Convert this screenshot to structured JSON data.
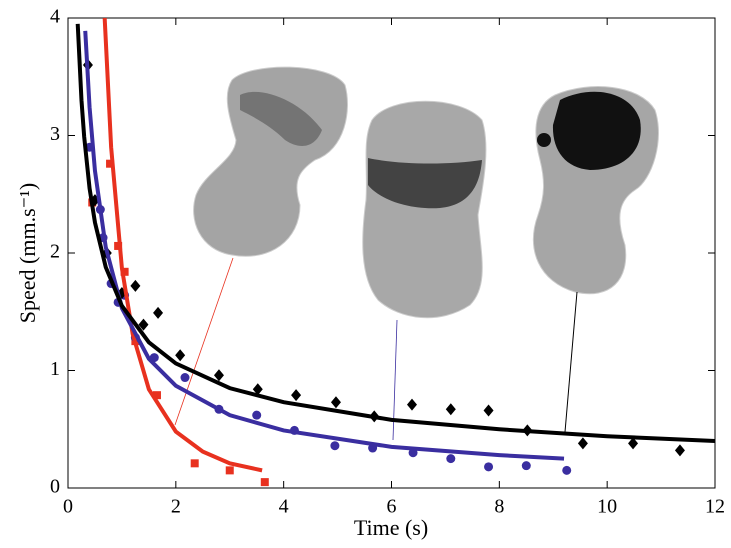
{
  "chart_data": {
    "type": "scatter",
    "xlabel": "Time (s)",
    "ylabel": "Speed (mm.s⁻¹)",
    "xlim": [
      0,
      12
    ],
    "ylim": [
      0,
      4
    ],
    "xticks": [
      0,
      2,
      4,
      6,
      8,
      10,
      12
    ],
    "yticks": [
      0,
      1,
      2,
      3,
      4
    ],
    "series": [
      {
        "type": "scatter",
        "marker": "square",
        "color": "#e8311f",
        "x": [
          0.45,
          0.78,
          0.93,
          1.05,
          1.25,
          1.65,
          2.35,
          3.0,
          3.65
        ],
        "values": [
          2.43,
          2.76,
          2.06,
          1.84,
          1.25,
          0.79,
          0.21,
          0.15,
          0.05
        ]
      },
      {
        "type": "scatter",
        "marker": "circle",
        "color": "#3a2ea0",
        "x": [
          0.4,
          0.6,
          0.65,
          0.8,
          0.93,
          1.05,
          1.25,
          1.6,
          2.17,
          2.8,
          3.5,
          4.2,
          4.95,
          5.65,
          6.4,
          7.1,
          7.8,
          8.5,
          9.25
        ],
        "values": [
          2.9,
          2.37,
          2.13,
          1.74,
          1.58,
          1.64,
          1.28,
          1.11,
          0.94,
          0.67,
          0.62,
          0.49,
          0.36,
          0.34,
          0.3,
          0.25,
          0.18,
          0.19,
          0.15
        ]
      },
      {
        "type": "scatter",
        "marker": "diamond",
        "color": "#000000",
        "x": [
          0.37,
          0.5,
          0.72,
          1.0,
          1.25,
          1.4,
          1.67,
          2.08,
          2.8,
          3.52,
          4.23,
          4.97,
          5.68,
          6.38,
          7.1,
          7.8,
          8.52,
          9.55,
          10.48,
          11.35
        ],
        "values": [
          3.6,
          2.45,
          2.0,
          1.66,
          1.72,
          1.39,
          1.49,
          1.13,
          0.96,
          0.84,
          0.79,
          0.73,
          0.61,
          0.71,
          0.67,
          0.66,
          0.49,
          0.38,
          0.38,
          0.32
        ]
      },
      {
        "type": "line",
        "color": "#e8311f",
        "x": [
          0.68,
          0.8,
          1,
          1.2,
          1.5,
          2,
          2.5,
          3,
          3.6
        ],
        "values": [
          4.0,
          2.9,
          1.87,
          1.31,
          0.84,
          0.48,
          0.31,
          0.21,
          0.15
        ]
      },
      {
        "type": "line",
        "color": "#3a2ea0",
        "x": [
          0.32,
          0.4,
          0.5,
          0.7,
          1,
          1.5,
          2,
          3,
          4,
          6,
          8,
          9.2
        ],
        "values": [
          3.89,
          3.24,
          2.7,
          2.05,
          1.53,
          1.1,
          0.87,
          0.62,
          0.49,
          0.35,
          0.28,
          0.25
        ]
      },
      {
        "type": "line",
        "color": "#000000",
        "x": [
          0.18,
          0.25,
          0.3,
          0.4,
          0.5,
          0.7,
          1,
          1.5,
          2,
          3,
          4,
          6,
          8,
          10,
          12
        ],
        "values": [
          3.95,
          3.3,
          2.99,
          2.55,
          2.26,
          1.88,
          1.55,
          1.24,
          1.06,
          0.85,
          0.73,
          0.58,
          0.5,
          0.44,
          0.4
        ]
      }
    ]
  }
}
